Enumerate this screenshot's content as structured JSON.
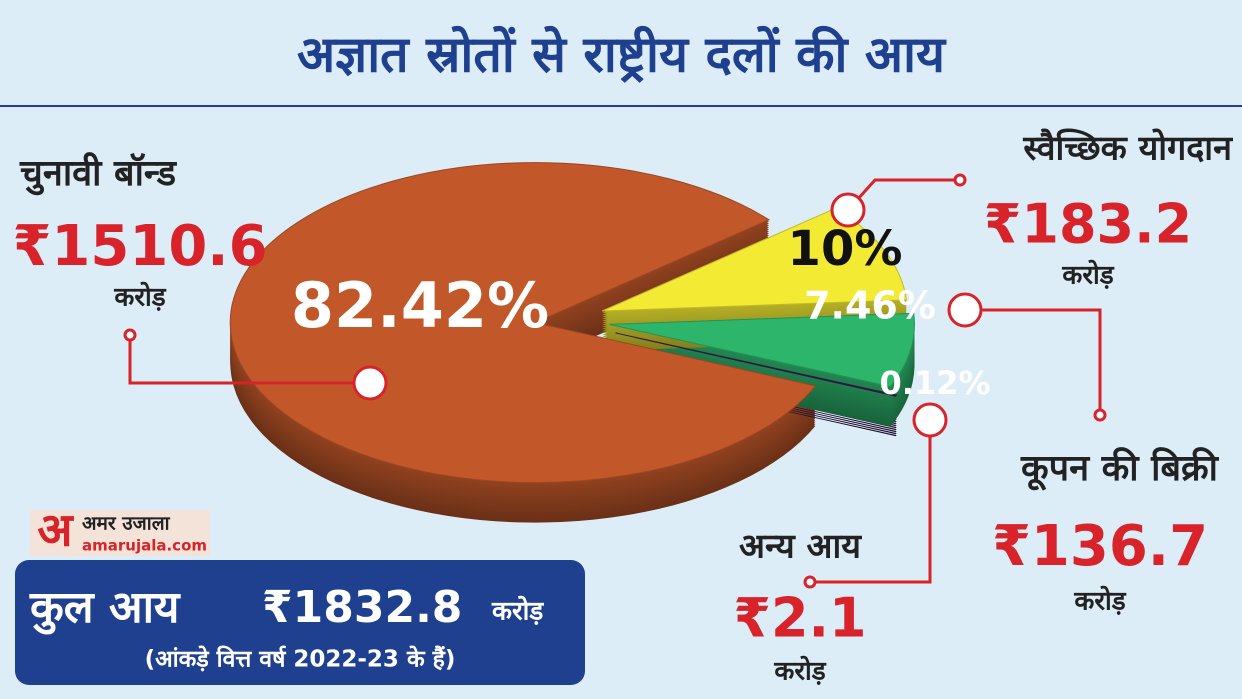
{
  "chart_data": {
    "type": "pie",
    "title": "अज्ञात स्रोतों से राष्ट्रीय दलों की आय",
    "categories": [
      "चुनावी बॉन्ड",
      "स्वैच्छिक योगदान",
      "कूपन की बिक्री",
      "अन्य आय"
    ],
    "values": [
      82.42,
      10,
      7.46,
      0.12
    ],
    "value_labels": [
      "82.42%",
      "10%",
      "7.46%",
      "0.12%"
    ],
    "colors": [
      "#c2582a",
      "#f2ea33",
      "#2db56c",
      "#3b1d55"
    ],
    "amounts": [
      "₹1510.6",
      "₹183.2",
      "₹136.7",
      "₹2.1"
    ],
    "amount_unit": "करोड़",
    "total_label": "कुल आय",
    "total_amount": "₹1832.8",
    "footnote": "(आंकड़े वित्त वर्ष 2022-23 के हैं)",
    "logo": {
      "mark": "अ",
      "name": "अमर उजाला",
      "url": "amarujala.com"
    }
  }
}
